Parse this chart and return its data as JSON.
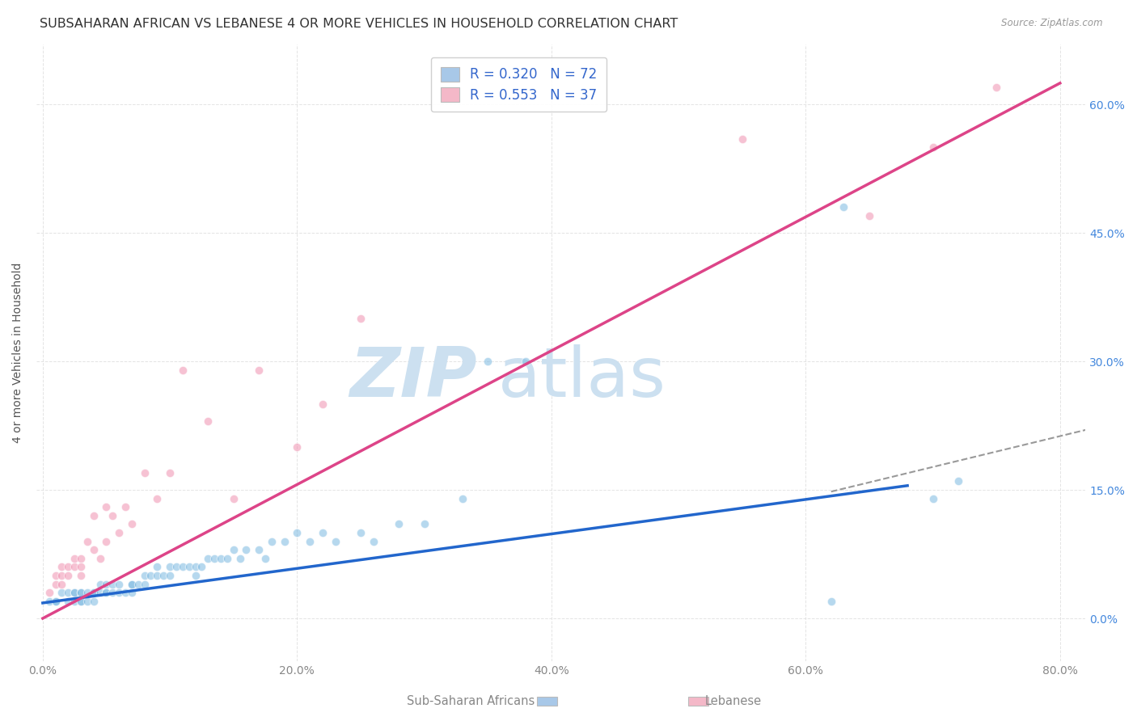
{
  "title": "SUBSAHARAN AFRICAN VS LEBANESE 4 OR MORE VEHICLES IN HOUSEHOLD CORRELATION CHART",
  "source": "Source: ZipAtlas.com",
  "xlabel_ticks": [
    "0.0%",
    "20.0%",
    "40.0%",
    "60.0%",
    "80.0%"
  ],
  "xlabel_tick_vals": [
    0.0,
    0.2,
    0.4,
    0.6,
    0.8
  ],
  "ylabel_ticks": [
    "0.0%",
    "15.0%",
    "30.0%",
    "45.0%",
    "60.0%"
  ],
  "ylabel_tick_vals": [
    0.0,
    0.15,
    0.3,
    0.45,
    0.6
  ],
  "right_ytick_vals": [
    0.0,
    0.15,
    0.3,
    0.45,
    0.6
  ],
  "right_ytick_labels": [
    "0.0%",
    "15.0%",
    "30.0%",
    "45.0%",
    "60.0%"
  ],
  "ylabel": "4 or more Vehicles in Household",
  "xlim": [
    -0.005,
    0.82
  ],
  "ylim": [
    -0.05,
    0.67
  ],
  "legend_blue_label_r": "R = 0.320",
  "legend_blue_label_n": "N = 72",
  "legend_pink_label_r": "R = 0.553",
  "legend_pink_label_n": "N = 37",
  "legend_blue_color": "#a8c8e8",
  "legend_pink_color": "#f4b8c8",
  "blue_scatter_color": "#7ab8e0",
  "pink_scatter_color": "#f090b0",
  "blue_line_color": "#2266cc",
  "pink_line_color": "#dd4488",
  "dashed_line_color": "#999999",
  "watermark_zip": "ZIP",
  "watermark_atlas": "atlas",
  "watermark_color": "#cce0f0",
  "blue_x": [
    0.005,
    0.01,
    0.01,
    0.015,
    0.02,
    0.02,
    0.025,
    0.025,
    0.025,
    0.03,
    0.03,
    0.03,
    0.03,
    0.035,
    0.035,
    0.04,
    0.04,
    0.04,
    0.045,
    0.045,
    0.05,
    0.05,
    0.05,
    0.055,
    0.055,
    0.06,
    0.06,
    0.065,
    0.07,
    0.07,
    0.07,
    0.075,
    0.08,
    0.08,
    0.085,
    0.09,
    0.09,
    0.095,
    0.1,
    0.1,
    0.105,
    0.11,
    0.115,
    0.12,
    0.12,
    0.125,
    0.13,
    0.135,
    0.14,
    0.145,
    0.15,
    0.155,
    0.16,
    0.17,
    0.175,
    0.18,
    0.19,
    0.2,
    0.21,
    0.22,
    0.23,
    0.25,
    0.26,
    0.28,
    0.3,
    0.33,
    0.35,
    0.38,
    0.62,
    0.63,
    0.7,
    0.72
  ],
  "blue_y": [
    0.02,
    0.02,
    0.02,
    0.03,
    0.02,
    0.03,
    0.03,
    0.02,
    0.03,
    0.03,
    0.02,
    0.03,
    0.02,
    0.03,
    0.02,
    0.03,
    0.02,
    0.03,
    0.04,
    0.03,
    0.03,
    0.04,
    0.03,
    0.04,
    0.03,
    0.04,
    0.03,
    0.03,
    0.04,
    0.04,
    0.03,
    0.04,
    0.04,
    0.05,
    0.05,
    0.05,
    0.06,
    0.05,
    0.06,
    0.05,
    0.06,
    0.06,
    0.06,
    0.06,
    0.05,
    0.06,
    0.07,
    0.07,
    0.07,
    0.07,
    0.08,
    0.07,
    0.08,
    0.08,
    0.07,
    0.09,
    0.09,
    0.1,
    0.09,
    0.1,
    0.09,
    0.1,
    0.09,
    0.11,
    0.11,
    0.14,
    0.3,
    0.3,
    0.02,
    0.48,
    0.14,
    0.16
  ],
  "pink_x": [
    0.005,
    0.01,
    0.01,
    0.015,
    0.015,
    0.015,
    0.02,
    0.02,
    0.025,
    0.025,
    0.03,
    0.03,
    0.03,
    0.035,
    0.04,
    0.04,
    0.045,
    0.05,
    0.05,
    0.055,
    0.06,
    0.065,
    0.07,
    0.08,
    0.09,
    0.1,
    0.11,
    0.13,
    0.15,
    0.17,
    0.2,
    0.22,
    0.25,
    0.55,
    0.65,
    0.7,
    0.75
  ],
  "pink_y": [
    0.03,
    0.04,
    0.05,
    0.05,
    0.06,
    0.04,
    0.05,
    0.06,
    0.06,
    0.07,
    0.07,
    0.05,
    0.06,
    0.09,
    0.08,
    0.12,
    0.07,
    0.09,
    0.13,
    0.12,
    0.1,
    0.13,
    0.11,
    0.17,
    0.14,
    0.17,
    0.29,
    0.23,
    0.14,
    0.29,
    0.2,
    0.25,
    0.35,
    0.56,
    0.47,
    0.55,
    0.62
  ],
  "blue_line_x": [
    0.0,
    0.68
  ],
  "blue_line_y": [
    0.018,
    0.155
  ],
  "pink_line_x": [
    0.0,
    0.8
  ],
  "pink_line_y": [
    0.0,
    0.625
  ],
  "dashed_line_x": [
    0.62,
    0.82
  ],
  "dashed_line_y": [
    0.148,
    0.22
  ],
  "background_color": "#ffffff",
  "grid_color": "#dddddd",
  "title_fontsize": 11.5,
  "axis_label_fontsize": 10,
  "tick_fontsize": 10,
  "legend_fontsize": 12,
  "scatter_size": 55,
  "scatter_alpha": 0.55,
  "tick_color_blue": "#4488dd",
  "tick_color_gray": "#888888",
  "legend_text_color": "#333333",
  "legend_rn_color": "#3366cc"
}
